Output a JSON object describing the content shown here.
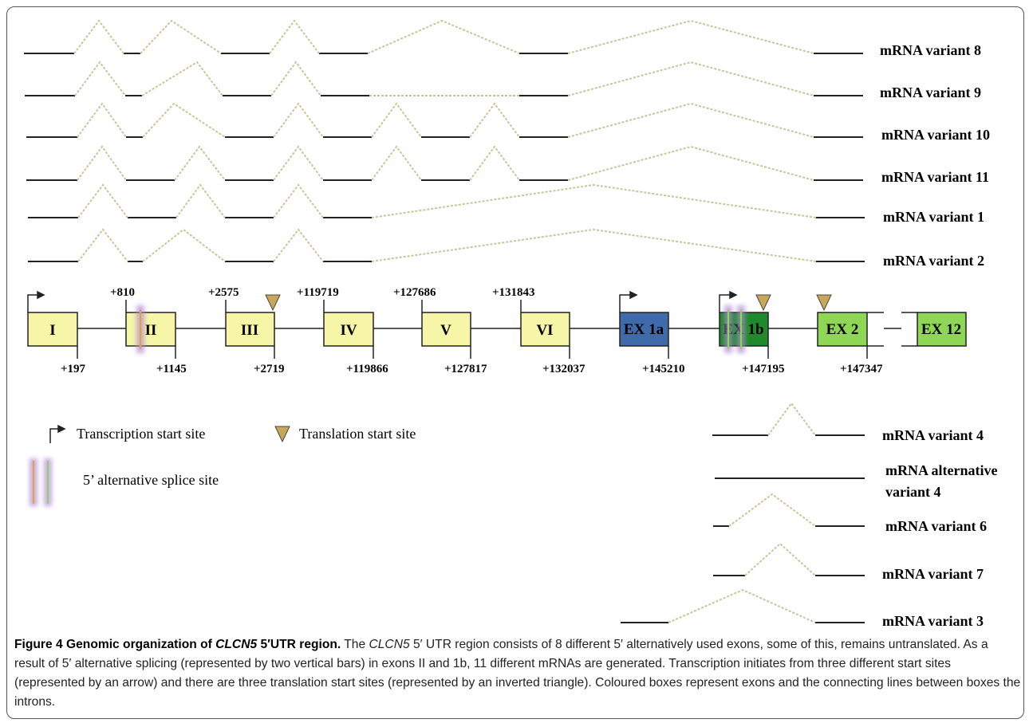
{
  "caption": {
    "label": "Figure 4",
    "title_prefix": "Genomic organization of ",
    "title_gene": "CLCN5",
    "title_suffix": " 5′UTR region.",
    "text_1": " The ",
    "gene_1": "CLCN5",
    "text_2": " 5′ UTR region consists of 8 different 5′ alternatively used exons, some of this, remains untranslated. As a result of 5′ alternative splicing (represented by two vertical bars) in exons II and 1b, 11 different mRNAs are generated. Transcription initiates from three different start sites (represented by an arrow) and there are three translation start sites (represented by an inverted triangle). Coloured boxes represent exons and the connecting lines between boxes the introns."
  },
  "legend": {
    "transcription": "Transcription  start  site",
    "translation": "Translation  start site",
    "splice": "5’ alternative  splice  site"
  },
  "exons": [
    {
      "label": "I",
      "color": "#f6f5a8"
    },
    {
      "label": "II",
      "color": "#f6f5a8"
    },
    {
      "label": "III",
      "color": "#f6f5a8"
    },
    {
      "label": "IV",
      "color": "#f6f5a8"
    },
    {
      "label": "V",
      "color": "#f6f5a8"
    },
    {
      "label": "VI",
      "color": "#f6f5a8"
    },
    {
      "label": "EX 1a",
      "color": "#3f6bab"
    },
    {
      "label": "EX 1b",
      "color": "#1f8a2c"
    },
    {
      "label": "EX 2",
      "color": "#8fd656"
    },
    {
      "label": "EX 12",
      "color": "#8fd656"
    }
  ],
  "positions_top": [
    "+810",
    "+2575",
    "+119719",
    "+127686",
    "+131843"
  ],
  "positions_bottom": [
    "+197",
    "+1145",
    "+2719",
    "+119866",
    "+127817",
    "+132037",
    "+145210",
    "+147195",
    "+147347"
  ],
  "variants_top": [
    "mRNA variant  8",
    "mRNA variant  9",
    "mRNA variant  10",
    "mRNA variant  11",
    "mRNA variant  1",
    "mRNA variant  2"
  ],
  "variants_bottom": [
    "mRNA variant  4",
    "mRNA alternative",
    "variant  4",
    "mRNA variant  6",
    "mRNA variant  7",
    "mRNA variant  3"
  ],
  "colors": {
    "intron_dash": "#c9c59a",
    "translation_triangle": "#c8a75a",
    "splice_orange": "#e7a13c",
    "splice_purple": "#b18ad6"
  }
}
